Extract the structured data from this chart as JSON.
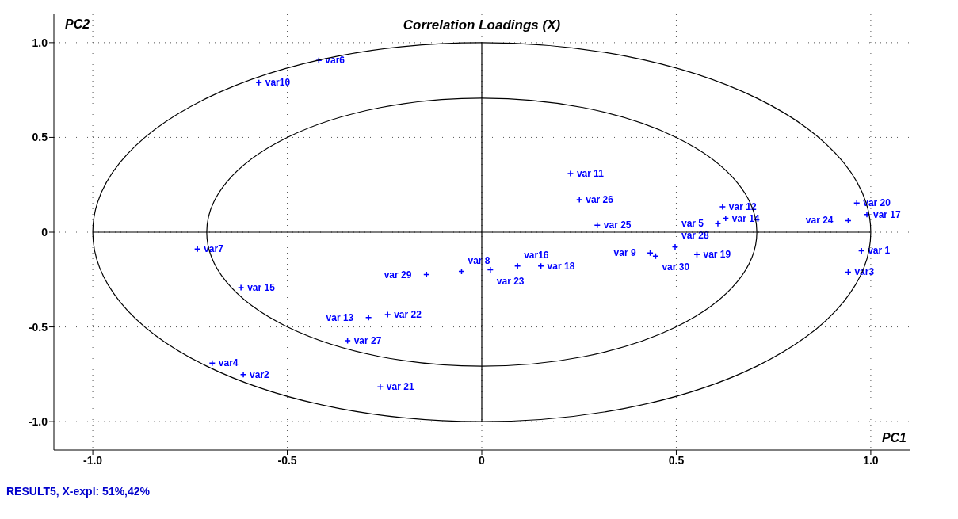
{
  "chart_data": {
    "type": "scatter",
    "title": "Correlation Loadings (X)",
    "xlabel": "PC1",
    "ylabel": "PC2",
    "annotations": [
      "RESULT5, X-expl: 51%,42%"
    ],
    "xlim": [
      -1.1,
      1.1
    ],
    "ylim": [
      -1.15,
      1.15
    ],
    "xticks": [
      {
        "value": -1,
        "label": "-1.0"
      },
      -0.5,
      0,
      0.5,
      {
        "value": 1,
        "label": "1.0"
      }
    ],
    "yticks": [
      {
        "value": -1,
        "label": "-1.0"
      },
      -0.5,
      0,
      0.5,
      {
        "value": 1,
        "label": "1.0"
      }
    ],
    "grid": true,
    "marker": "cross",
    "series": [
      {
        "type": "scatter",
        "color": "#0000ff",
        "x": [
          0.976,
          -0.613,
          0.942,
          -0.693,
          0.607,
          -0.419,
          -0.731,
          -0.052,
          0.433,
          -0.573,
          0.228,
          0.619,
          -0.291,
          0.627,
          -0.619,
          0.092,
          0.99,
          0.152,
          0.553,
          0.964,
          -0.261,
          -0.242,
          0.022,
          0.942,
          0.297,
          0.251,
          -0.345,
          0.497,
          -0.142,
          0.447
        ],
        "values": [
          -0.098,
          -0.752,
          -0.211,
          -0.691,
          0.045,
          0.906,
          -0.089,
          -0.207,
          -0.11,
          0.789,
          0.309,
          0.134,
          -0.451,
          0.073,
          -0.293,
          -0.179,
          0.093,
          -0.179,
          -0.118,
          0.154,
          -0.817,
          -0.435,
          -0.199,
          0.061,
          0.037,
          0.171,
          -0.573,
          -0.077,
          -0.224,
          -0.126
        ],
        "value_labels": [
          "var 1",
          "var2",
          "var3",
          "var4",
          "var 5",
          "var6",
          "var7",
          "var 8",
          "var 9",
          "var10",
          "var 11",
          "var 12",
          "var 13",
          "var 14",
          "var 15",
          "var16",
          "var 17",
          "var 18",
          "var 19",
          "var 20",
          "var 21",
          "var 22",
          "var 23",
          "var 24",
          "var 25",
          "var 26",
          "var 27",
          "var 28",
          "var 29",
          "var 30"
        ]
      }
    ]
  }
}
